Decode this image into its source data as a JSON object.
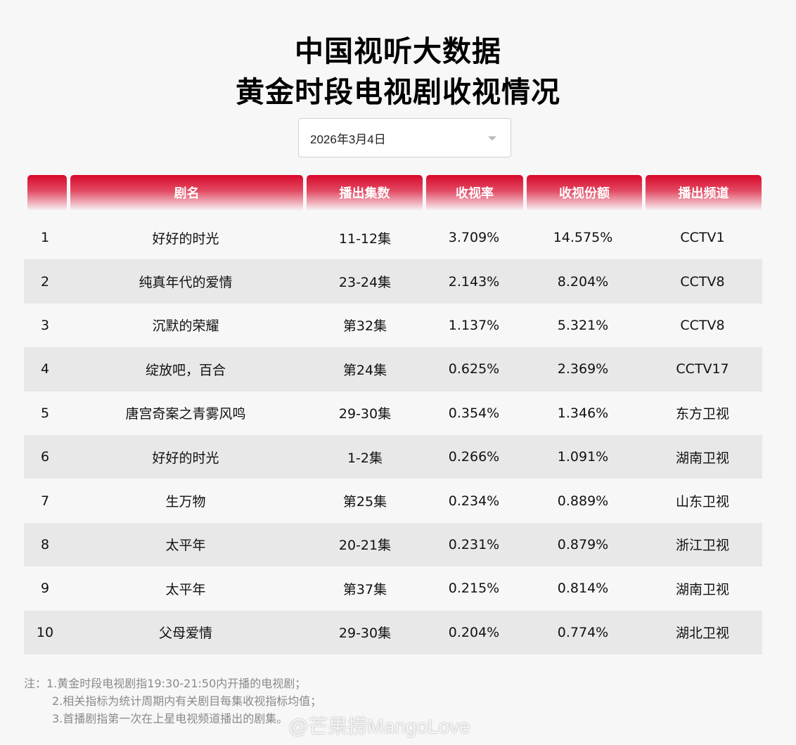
{
  "header": {
    "title_line1": "中国视听大数据",
    "title_line2": "黄金时段电视剧收视情况"
  },
  "date_select": {
    "value": "2026年3月4日",
    "icon": "chevron-down-icon"
  },
  "table": {
    "columns": [
      "",
      "剧名",
      "播出集数",
      "收视率",
      "收视份额",
      "播出频道"
    ],
    "rows": [
      {
        "rank": "1",
        "name": "好好的时光",
        "episodes": "11-12集",
        "rating": "3.709%",
        "share": "14.575%",
        "channel": "CCTV1"
      },
      {
        "rank": "2",
        "name": "纯真年代的爱情",
        "episodes": "23-24集",
        "rating": "2.143%",
        "share": "8.204%",
        "channel": "CCTV8"
      },
      {
        "rank": "3",
        "name": "沉默的荣耀",
        "episodes": "第32集",
        "rating": "1.137%",
        "share": "5.321%",
        "channel": "CCTV8"
      },
      {
        "rank": "4",
        "name": "绽放吧，百合",
        "episodes": "第24集",
        "rating": "0.625%",
        "share": "2.369%",
        "channel": "CCTV17"
      },
      {
        "rank": "5",
        "name": "唐宫奇案之青雾风鸣",
        "episodes": "29-30集",
        "rating": "0.354%",
        "share": "1.346%",
        "channel": "东方卫视"
      },
      {
        "rank": "6",
        "name": "好好的时光",
        "episodes": "1-2集",
        "rating": "0.266%",
        "share": "1.091%",
        "channel": "湖南卫视"
      },
      {
        "rank": "7",
        "name": "生万物",
        "episodes": "第25集",
        "rating": "0.234%",
        "share": "0.889%",
        "channel": "山东卫视"
      },
      {
        "rank": "8",
        "name": "太平年",
        "episodes": "20-21集",
        "rating": "0.231%",
        "share": "0.879%",
        "channel": "浙江卫视"
      },
      {
        "rank": "9",
        "name": "太平年",
        "episodes": "第37集",
        "rating": "0.215%",
        "share": "0.814%",
        "channel": "湖南卫视"
      },
      {
        "rank": "10",
        "name": "父母爱情",
        "episodes": "29-30集",
        "rating": "0.204%",
        "share": "0.774%",
        "channel": "湖北卫视"
      }
    ]
  },
  "notes": [
    "注：1.黄金时段电视剧指19:30-21:50内开播的电视剧；",
    "2.相关指标为统计周期内有关剧目每集收视指标均值；",
    "3.首播剧指第一次在上星电视频道播出的剧集。"
  ],
  "watermark": "@芒果捞MangoLove",
  "colors": {
    "header_red": "#d8092a",
    "row_alt": "#e8e8e8",
    "background": "#f7f7f7"
  }
}
